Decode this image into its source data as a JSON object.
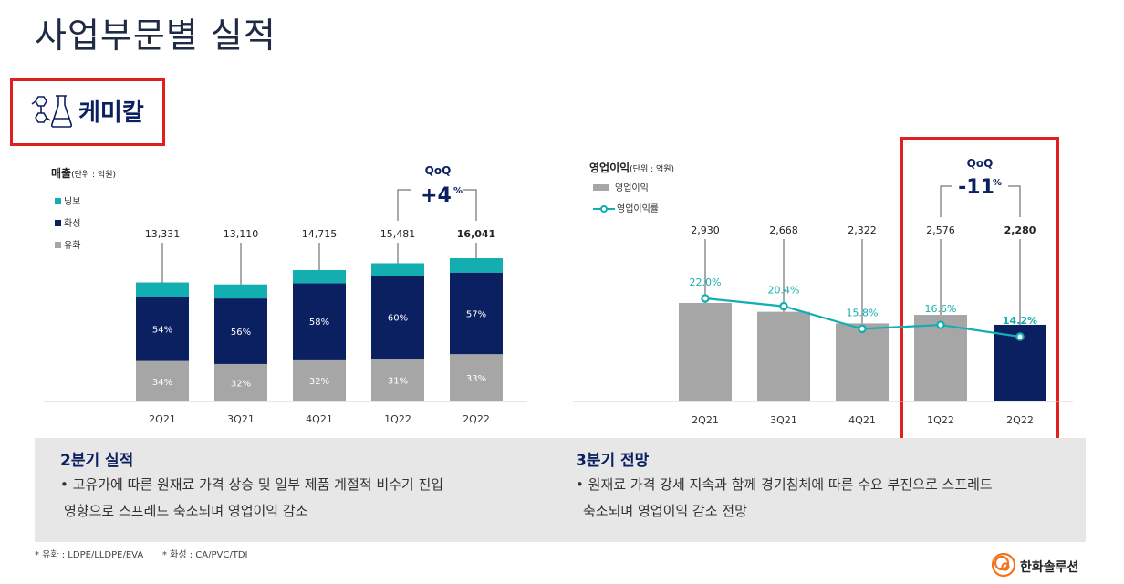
{
  "page_title": "사업부문별 실적",
  "section": {
    "label": "케미칼",
    "icon": "chemistry-icon"
  },
  "chart_data": [
    {
      "type": "bar",
      "title": "매출",
      "unit": "(단위 : 억원)",
      "categories": [
        "2Q21",
        "3Q21",
        "4Q21",
        "1Q22",
        "2Q22"
      ],
      "totals": [
        "13,331",
        "13,110",
        "14,715",
        "15,481",
        "16,041"
      ],
      "total_values": [
        13331,
        13110,
        14715,
        15481,
        16041
      ],
      "series": [
        {
          "name": "유화",
          "values": [
            34,
            32,
            32,
            31,
            33
          ],
          "labels": [
            "34%",
            "32%",
            "32%",
            "31%",
            "33%"
          ],
          "color": "#a6a6a6"
        },
        {
          "name": "화성",
          "values": [
            54,
            56,
            58,
            60,
            57
          ],
          "labels": [
            "54%",
            "56%",
            "58%",
            "60%",
            "57%"
          ],
          "color": "#0b2060"
        },
        {
          "name": "닝보",
          "values": [
            12,
            12,
            10,
            9,
            10
          ],
          "color": "#13aeb0"
        }
      ],
      "qoq_label": "QoQ",
      "qoq_value": "+4",
      "qoq_unit": "%"
    },
    {
      "type": "bar",
      "title": "영업이익",
      "unit": "(단위 : 억원)",
      "categories": [
        "2Q21",
        "3Q21",
        "4Q21",
        "1Q22",
        "2Q22"
      ],
      "series": [
        {
          "name": "영업이익",
          "values": [
            2930,
            2668,
            2322,
            2576,
            2280
          ],
          "labels": [
            "2,930",
            "2,668",
            "2,322",
            "2,576",
            "2,280"
          ],
          "color": "#a6a6a6",
          "highlight_color": "#0b2060"
        },
        {
          "name": "영업이익률",
          "type": "line",
          "values": [
            22.0,
            20.4,
            15.8,
            16.6,
            14.2
          ],
          "labels": [
            "22.0%",
            "20.4%",
            "15.8%",
            "16.6%",
            "14.2%"
          ],
          "color": "#13aeb0"
        }
      ],
      "qoq_label": "QoQ",
      "qoq_value": "-11",
      "qoq_unit": "%"
    }
  ],
  "panels": [
    {
      "title": "2분기 실적",
      "lines": [
        "• 고유가에 따른 원재료 가격 상승 및 일부 제품 계절적 비수기 진입",
        "영향으로 스프레드 축소되며 영업이익 감소"
      ]
    },
    {
      "title": "3분기 전망",
      "lines": [
        "• 원재료 가격 강세 지속과 함께 경기침체에 따른 수요 부진으로 스프레드",
        "축소되며 영업이익 감소 전망"
      ]
    }
  ],
  "footnotes": [
    "* 유화 : LDPE/LLDPE/EVA",
    "* 화성 : CA/PVC/TDI"
  ],
  "brand": {
    "name": "한화솔루션",
    "icon": "hanwha-logo-icon",
    "color": "#f37321"
  }
}
